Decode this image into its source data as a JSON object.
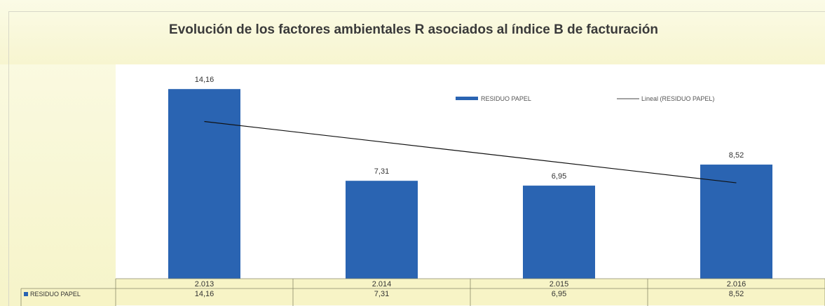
{
  "chart_data": {
    "type": "bar",
    "title": "Evolución de los factores ambientales R asociados al índice B de facturación",
    "categories": [
      "2.013",
      "2.014",
      "2.015",
      "2.016"
    ],
    "series": [
      {
        "name": "RESIDUO PAPEL",
        "values": [
          14.16,
          7.31,
          6.95,
          8.52
        ],
        "labels": [
          "14,16",
          "7,31",
          "6,95",
          "8,52"
        ],
        "color": "#2a64b2"
      }
    ],
    "trendline": {
      "name": "Lineal (RESIDUO PAPEL)",
      "values": [
        11.74,
        10.21,
        8.68,
        7.16
      ],
      "color": "#111111"
    },
    "ylim": [
      0,
      16
    ],
    "legend": "top-right",
    "grid": false,
    "data_table": true
  }
}
